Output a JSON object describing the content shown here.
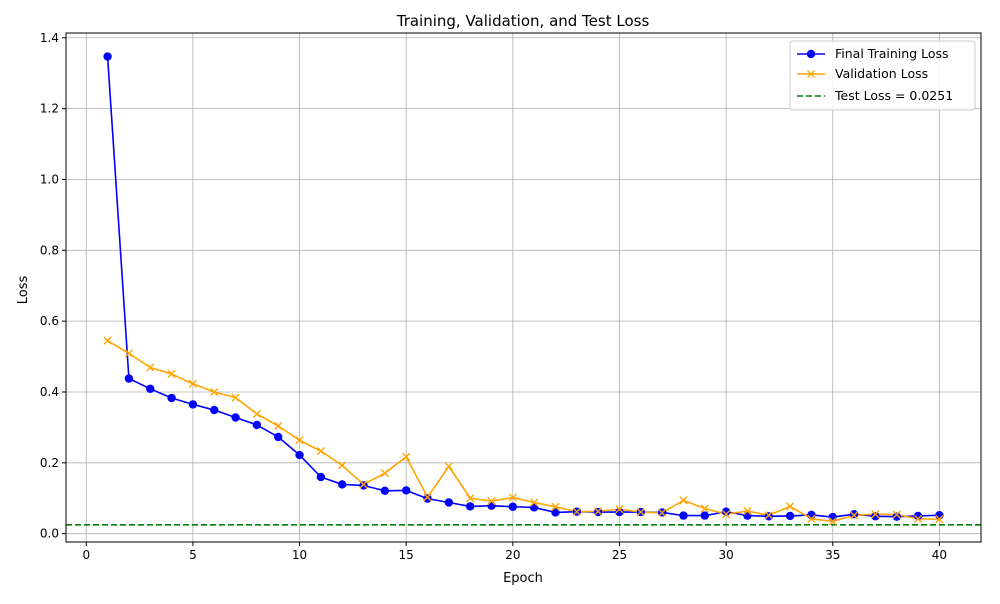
{
  "chart_data": {
    "type": "line",
    "title": "Training, Validation, and Test Loss",
    "xlabel": "Epoch",
    "ylabel": "Loss",
    "xlim": [
      -0.95,
      41.95
    ],
    "ylim": [
      -0.0235,
      1.4135
    ],
    "xticks": [
      0,
      5,
      10,
      15,
      20,
      25,
      30,
      35,
      40
    ],
    "yticks": [
      0.0,
      0.2,
      0.4,
      0.6,
      0.8,
      1.0,
      1.2,
      1.4
    ],
    "ytick_labels": [
      "0.0",
      "0.2",
      "0.4",
      "0.6",
      "0.8",
      "1.0",
      "1.2",
      "1.4"
    ],
    "grid": true,
    "legend_position": "top-right",
    "x": [
      1,
      2,
      3,
      4,
      5,
      6,
      7,
      8,
      9,
      10,
      11,
      12,
      13,
      14,
      15,
      16,
      17,
      18,
      19,
      20,
      21,
      22,
      23,
      24,
      25,
      26,
      27,
      28,
      29,
      30,
      31,
      32,
      33,
      34,
      35,
      36,
      37,
      38,
      39,
      40
    ],
    "series": [
      {
        "name": "Final Training Loss",
        "color": "#0000ff",
        "marker": "circle",
        "values": [
          1.347,
          0.438,
          0.409,
          0.383,
          0.365,
          0.349,
          0.328,
          0.307,
          0.273,
          0.222,
          0.16,
          0.139,
          0.136,
          0.121,
          0.122,
          0.099,
          0.088,
          0.077,
          0.079,
          0.076,
          0.074,
          0.06,
          0.062,
          0.061,
          0.061,
          0.061,
          0.06,
          0.051,
          0.051,
          0.062,
          0.051,
          0.049,
          0.05,
          0.053,
          0.047,
          0.055,
          0.049,
          0.048,
          0.05,
          0.052
        ]
      },
      {
        "name": "Validation Loss",
        "color": "#ffa500",
        "marker": "x",
        "values": [
          0.545,
          0.509,
          0.469,
          0.451,
          0.423,
          0.4,
          0.384,
          0.338,
          0.304,
          0.264,
          0.233,
          0.193,
          0.139,
          0.171,
          0.217,
          0.103,
          0.19,
          0.1,
          0.092,
          0.102,
          0.088,
          0.076,
          0.062,
          0.063,
          0.069,
          0.061,
          0.059,
          0.094,
          0.071,
          0.055,
          0.064,
          0.052,
          0.077,
          0.042,
          0.035,
          0.052,
          0.055,
          0.054,
          0.042,
          0.041
        ]
      }
    ],
    "hlines": [
      {
        "name": "Test Loss = 0.0251",
        "value": 0.0251,
        "color": "#008000",
        "style": "dashed"
      }
    ]
  }
}
